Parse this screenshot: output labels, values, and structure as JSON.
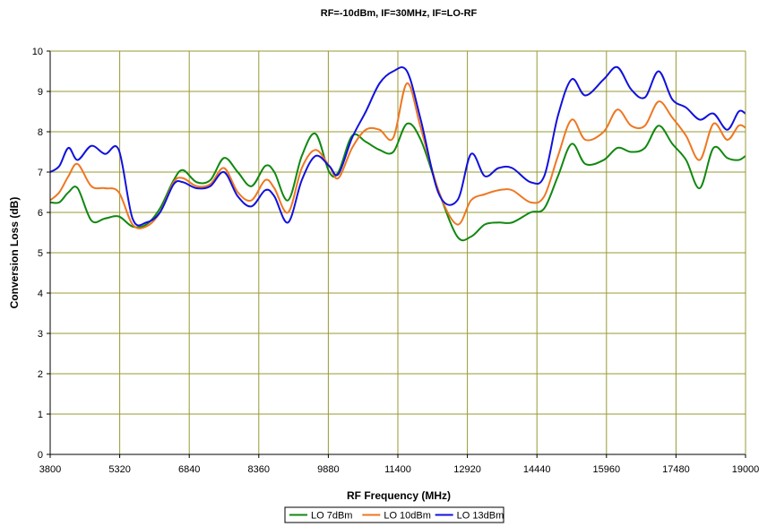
{
  "chart_data": {
    "type": "line",
    "title": "RF=-10dBm, IF=30MHz, IF=LO-RF",
    "xlabel": "RF Frequency (MHz)",
    "ylabel": "Conversion Loss (dB)",
    "xlim": [
      3800,
      19000
    ],
    "ylim": [
      0,
      10
    ],
    "x_ticks": [
      3800,
      5320,
      6840,
      8360,
      9880,
      11400,
      12920,
      14440,
      15960,
      17480,
      19000
    ],
    "y_ticks": [
      0,
      1,
      2,
      3,
      4,
      5,
      6,
      7,
      8,
      9,
      10
    ],
    "grid": true,
    "legend_position": "bottom-center",
    "colors": {
      "grid": "#999933",
      "axis": "#000000"
    },
    "series": [
      {
        "name": "LO 7dBm",
        "color": "#118811",
        "points": [
          [
            3800,
            6.25
          ],
          [
            4000,
            6.25
          ],
          [
            4200,
            6.5
          ],
          [
            4400,
            6.6
          ],
          [
            4700,
            5.8
          ],
          [
            5000,
            5.85
          ],
          [
            5300,
            5.9
          ],
          [
            5600,
            5.65
          ],
          [
            5900,
            5.7
          ],
          [
            6200,
            6.1
          ],
          [
            6500,
            6.8
          ],
          [
            6700,
            7.05
          ],
          [
            7000,
            6.75
          ],
          [
            7300,
            6.8
          ],
          [
            7600,
            7.35
          ],
          [
            7900,
            7.0
          ],
          [
            8200,
            6.65
          ],
          [
            8500,
            7.15
          ],
          [
            8700,
            7.0
          ],
          [
            9000,
            6.3
          ],
          [
            9300,
            7.4
          ],
          [
            9600,
            7.95
          ],
          [
            9900,
            7.0
          ],
          [
            10100,
            7.0
          ],
          [
            10400,
            7.9
          ],
          [
            10700,
            7.75
          ],
          [
            11000,
            7.55
          ],
          [
            11300,
            7.5
          ],
          [
            11600,
            8.2
          ],
          [
            11900,
            7.8
          ],
          [
            12300,
            6.5
          ],
          [
            12700,
            5.4
          ],
          [
            13000,
            5.4
          ],
          [
            13300,
            5.7
          ],
          [
            13600,
            5.75
          ],
          [
            13900,
            5.75
          ],
          [
            14300,
            6.0
          ],
          [
            14600,
            6.1
          ],
          [
            14900,
            6.9
          ],
          [
            15200,
            7.7
          ],
          [
            15500,
            7.2
          ],
          [
            15900,
            7.3
          ],
          [
            16200,
            7.6
          ],
          [
            16500,
            7.5
          ],
          [
            16800,
            7.6
          ],
          [
            17100,
            8.15
          ],
          [
            17400,
            7.7
          ],
          [
            17700,
            7.3
          ],
          [
            18000,
            6.6
          ],
          [
            18300,
            7.6
          ],
          [
            18600,
            7.35
          ],
          [
            18850,
            7.3
          ],
          [
            19000,
            7.4
          ]
        ]
      },
      {
        "name": "LO 10dBm",
        "color": "#ee7722",
        "points": [
          [
            3800,
            6.3
          ],
          [
            4000,
            6.5
          ],
          [
            4200,
            6.9
          ],
          [
            4400,
            7.2
          ],
          [
            4700,
            6.65
          ],
          [
            5000,
            6.6
          ],
          [
            5300,
            6.5
          ],
          [
            5600,
            5.7
          ],
          [
            5900,
            5.65
          ],
          [
            6200,
            6.0
          ],
          [
            6500,
            6.75
          ],
          [
            6700,
            6.85
          ],
          [
            7000,
            6.65
          ],
          [
            7300,
            6.7
          ],
          [
            7600,
            7.1
          ],
          [
            7900,
            6.5
          ],
          [
            8200,
            6.3
          ],
          [
            8500,
            6.8
          ],
          [
            8700,
            6.6
          ],
          [
            9000,
            6.0
          ],
          [
            9300,
            7.1
          ],
          [
            9600,
            7.55
          ],
          [
            9900,
            7.15
          ],
          [
            10100,
            6.85
          ],
          [
            10400,
            7.6
          ],
          [
            10700,
            8.05
          ],
          [
            11000,
            8.05
          ],
          [
            11300,
            7.85
          ],
          [
            11600,
            9.2
          ],
          [
            11900,
            8.1
          ],
          [
            12300,
            6.5
          ],
          [
            12700,
            5.7
          ],
          [
            13000,
            6.3
          ],
          [
            13300,
            6.45
          ],
          [
            13600,
            6.55
          ],
          [
            13900,
            6.55
          ],
          [
            14300,
            6.25
          ],
          [
            14600,
            6.4
          ],
          [
            14900,
            7.4
          ],
          [
            15200,
            8.3
          ],
          [
            15500,
            7.8
          ],
          [
            15900,
            8.0
          ],
          [
            16200,
            8.55
          ],
          [
            16500,
            8.15
          ],
          [
            16800,
            8.15
          ],
          [
            17100,
            8.75
          ],
          [
            17400,
            8.35
          ],
          [
            17700,
            7.9
          ],
          [
            18000,
            7.3
          ],
          [
            18300,
            8.2
          ],
          [
            18600,
            7.8
          ],
          [
            18850,
            8.15
          ],
          [
            19000,
            8.1
          ]
        ]
      },
      {
        "name": "LO 13dBm",
        "color": "#1111dd",
        "points": [
          [
            3800,
            7.0
          ],
          [
            4000,
            7.15
          ],
          [
            4200,
            7.6
          ],
          [
            4400,
            7.3
          ],
          [
            4700,
            7.65
          ],
          [
            5000,
            7.45
          ],
          [
            5300,
            7.55
          ],
          [
            5600,
            5.85
          ],
          [
            5900,
            5.75
          ],
          [
            6200,
            6.0
          ],
          [
            6500,
            6.7
          ],
          [
            6700,
            6.75
          ],
          [
            7000,
            6.6
          ],
          [
            7300,
            6.65
          ],
          [
            7600,
            7.0
          ],
          [
            7900,
            6.4
          ],
          [
            8200,
            6.15
          ],
          [
            8500,
            6.55
          ],
          [
            8700,
            6.4
          ],
          [
            9000,
            5.75
          ],
          [
            9300,
            6.8
          ],
          [
            9600,
            7.4
          ],
          [
            9900,
            7.15
          ],
          [
            10100,
            6.95
          ],
          [
            10400,
            7.85
          ],
          [
            10700,
            8.5
          ],
          [
            11000,
            9.2
          ],
          [
            11300,
            9.5
          ],
          [
            11600,
            9.5
          ],
          [
            11900,
            8.3
          ],
          [
            12300,
            6.45
          ],
          [
            12700,
            6.3
          ],
          [
            13000,
            7.45
          ],
          [
            13300,
            6.9
          ],
          [
            13600,
            7.1
          ],
          [
            13900,
            7.1
          ],
          [
            14300,
            6.75
          ],
          [
            14600,
            6.9
          ],
          [
            14900,
            8.4
          ],
          [
            15200,
            9.3
          ],
          [
            15500,
            8.9
          ],
          [
            15900,
            9.3
          ],
          [
            16200,
            9.6
          ],
          [
            16500,
            9.05
          ],
          [
            16800,
            8.85
          ],
          [
            17100,
            9.5
          ],
          [
            17400,
            8.8
          ],
          [
            17700,
            8.6
          ],
          [
            18000,
            8.3
          ],
          [
            18300,
            8.45
          ],
          [
            18600,
            8.05
          ],
          [
            18850,
            8.5
          ],
          [
            19000,
            8.45
          ]
        ]
      }
    ]
  }
}
